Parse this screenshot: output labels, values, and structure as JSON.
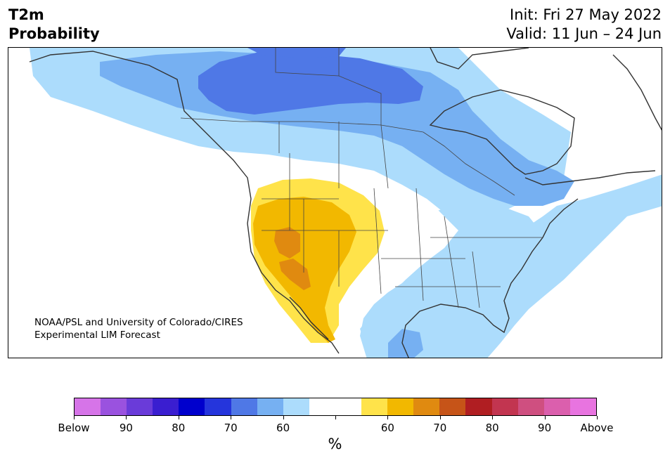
{
  "header": {
    "title_line1": "T2m",
    "title_line2": "Probability",
    "init": "Init: Fri 27 May 2022",
    "valid": "Valid: 11 Jun – 24 Jun"
  },
  "credit": {
    "line1": "NOAA/PSL and University of Colorado/CIRES",
    "line2": "Experimental LIM Forecast"
  },
  "colorbar": {
    "unit": "%",
    "colors": [
      "#d674e8",
      "#9a52df",
      "#6a3bd9",
      "#3a1ed0",
      "#0000cd",
      "#2535dc",
      "#4f78e6",
      "#76b0f2",
      "#acdcfc",
      "#ffffff",
      "#ffffff",
      "#ffe34a",
      "#f2b800",
      "#e08a10",
      "#c65418",
      "#b01e22",
      "#c23550",
      "#cf4f80",
      "#db5fad",
      "#e874e0"
    ],
    "labels": [
      "Below",
      "90",
      "80",
      "70",
      "60",
      "60",
      "70",
      "80",
      "90",
      "Above"
    ]
  },
  "map": {
    "region": "North America",
    "colors": {
      "cold_60": "#acdcfc",
      "cold_70": "#76b0f2",
      "cold_80": "#4f78e6",
      "warm_60": "#ffe34a",
      "warm_70": "#f2b800",
      "warm_80": "#e08a10"
    }
  }
}
